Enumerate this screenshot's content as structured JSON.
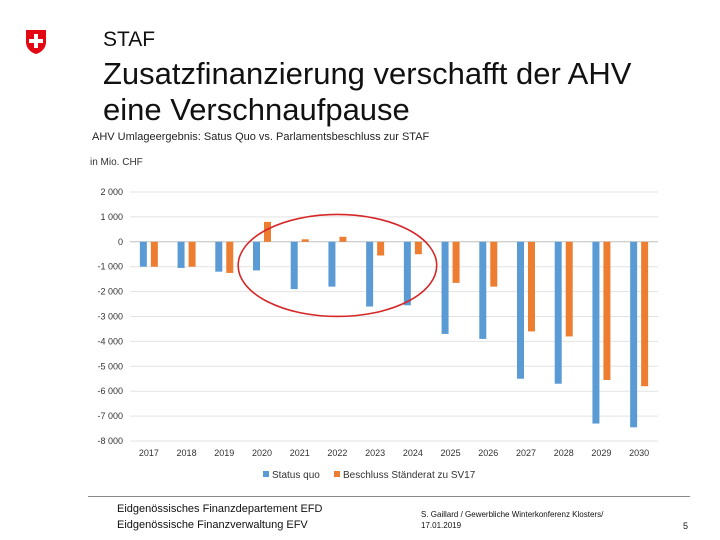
{
  "header": {
    "section": "STAF",
    "title_line1": "Zusatzfinanzierung verschafft der AHV",
    "title_line2": "eine Verschnaufpause"
  },
  "colors": {
    "status_quo": "#5b9bd5",
    "beschluss": "#ed7d31",
    "highlight_circle": "#d62728",
    "logo_red": "#e30613"
  },
  "chart_data": {
    "type": "bar",
    "title": "AHV Umlageergebnis: Satus Quo vs. Parlamentsbeschluss zur STAF",
    "unit_label": "in Mio. CHF",
    "categories": [
      "2017",
      "2018",
      "2019",
      "2020",
      "2021",
      "2022",
      "2023",
      "2024",
      "2025",
      "2026",
      "2027",
      "2028",
      "2029",
      "2030"
    ],
    "series": [
      {
        "name": "Status quo",
        "values": [
          -1000,
          -1050,
          -1200,
          -1150,
          -1900,
          -1800,
          -2600,
          -2550,
          -3700,
          -3900,
          -5500,
          -5700,
          -7300,
          -7450
        ]
      },
      {
        "name": "Beschluss Ständerat zu SV17",
        "values": [
          -1000,
          -1000,
          -1250,
          800,
          100,
          200,
          -550,
          -500,
          -1650,
          -1800,
          -3600,
          -3800,
          -5550,
          -5800
        ]
      }
    ],
    "ylim": [
      -8000,
      2000
    ],
    "yticks": [
      "2 000",
      "1 000",
      "0",
      "-1 000",
      "-2 000",
      "-3 000",
      "-4 000",
      "-5 000",
      "-6 000",
      "-7 000",
      "-8 000"
    ],
    "ytick_values": [
      2000,
      1000,
      0,
      -1000,
      -2000,
      -3000,
      -4000,
      -5000,
      -6000,
      -7000,
      -8000
    ],
    "legend_position": "bottom",
    "annotation": "red ellipse highlighting 2020-2024"
  },
  "footer": {
    "dept_line1": "Eidgenössisches Finanzdepartement EFD",
    "dept_line2": "Eidgenössische Finanzverwaltung EFV",
    "source_line1": "S. Gaillard / Gewerbliche Winterkonferenz Klosters/",
    "source_line2": "17.01.2019",
    "page_number": "5"
  }
}
